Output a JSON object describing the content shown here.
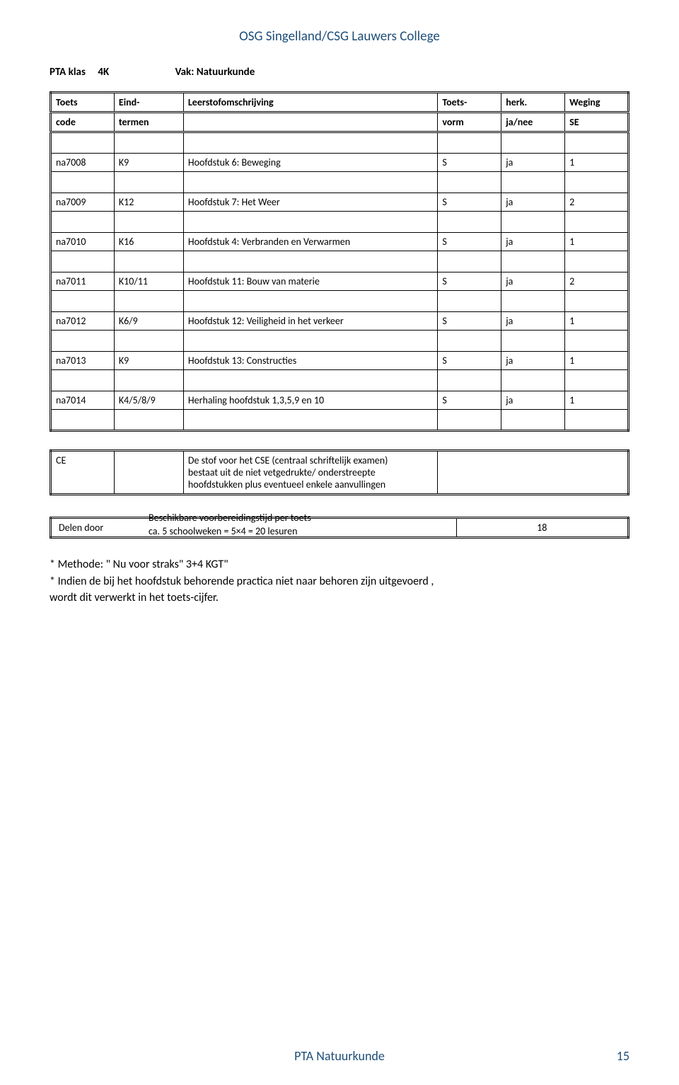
{
  "header": {
    "title": "OSG Singelland/CSG Lauwers College"
  },
  "meta": {
    "klas_label": "PTA klas",
    "klas_value": "4K",
    "vak_label": "Vak: Natuurkunde"
  },
  "table": {
    "head_row1": {
      "c1": "Toets",
      "c2": "Eind-",
      "c3": "Leerstofomschrijving",
      "c4": "Toets-",
      "c5": "herk.",
      "c6": "Weging"
    },
    "head_row2": {
      "c1": "code",
      "c2": "termen",
      "c3": "",
      "c4": "vorm",
      "c5": "ja/nee",
      "c6": "SE"
    },
    "rows": [
      {
        "code": "na7008",
        "term": "K9",
        "desc": "Hoofdstuk 6:   Beweging",
        "vorm": "S",
        "herk": "ja",
        "se": "1"
      },
      {
        "code": "na7009",
        "term": "K12",
        "desc": "Hoofdstuk 7:  Het Weer",
        "vorm": "S",
        "herk": "ja",
        "se": "2"
      },
      {
        "code": "na7010",
        "term": "K16",
        "desc": "Hoofdstuk 4:   Verbranden en Verwarmen",
        "vorm": "S",
        "herk": "ja",
        "se": "1"
      },
      {
        "code": "na7011",
        "term": "K10/11",
        "desc": "Hoofdstuk 11: Bouw van materie",
        "vorm": "S",
        "herk": "ja",
        "se": "2"
      },
      {
        "code": "na7012",
        "term": "K6/9",
        "desc": "Hoofdstuk 12:   Veiligheid in het verkeer",
        "vorm": "S",
        "herk": "ja",
        "se": "1"
      },
      {
        "code": "na7013",
        "term": "K9",
        "desc": "Hoofdstuk 13:   Constructies",
        "vorm": "S",
        "herk": "ja",
        "se": "1"
      },
      {
        "code": "na7014",
        "term": "K4/5/8/9",
        "desc": "Herhaling hoofdstuk 1,3,5,9 en 10",
        "vorm": "S",
        "herk": "ja",
        "se": "1"
      }
    ]
  },
  "ce": {
    "label": "CE",
    "line1": "De stof voor het CSE (centraal schriftelijk examen)",
    "line2": "bestaat uit de  niet vetgedrukte/ onderstreepte",
    "line3": "hoofdstukken  plus eventueel enkele aanvullingen"
  },
  "delen": {
    "label": "Delen door",
    "value": "18"
  },
  "prep": {
    "line1": "Beschikbare voorbereidingstijd per toets",
    "line2": "ca. 5 schoolweken =  5×4 = 20 lesuren"
  },
  "notes": {
    "n1": "* Methode: \" Nu voor straks\" 3+4 KGT\"",
    "n2": "* Indien de bij het hoofdstuk behorende practica niet naar behoren zijn uitgevoerd ,",
    "n3": "  wordt dit verwerkt in het toets-cijfer."
  },
  "footer": {
    "label": "PTA Natuurkunde",
    "page": "15"
  }
}
